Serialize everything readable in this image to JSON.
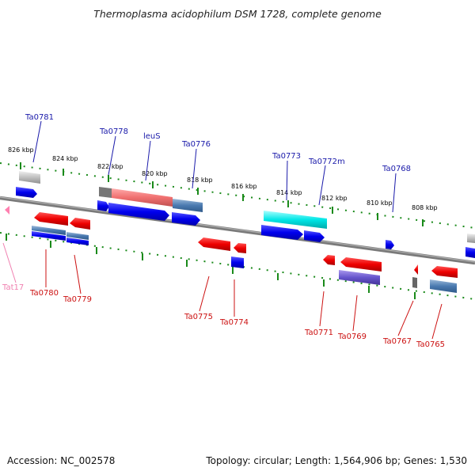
{
  "title": "Thermoplasma acidophilum DSM 1728, complete genome",
  "footer": {
    "accession": "Accession: NC_002578",
    "summary": "Topology: circular; Length: 1,564,906 bp; Genes: 1,530"
  },
  "colors": {
    "backbone": "#8a8a8a",
    "ticks": "#1a8a1a",
    "label_upper": "#1a1aaa",
    "label_lower": "#cc1111",
    "label_trna": "#f080b0"
  },
  "scale_labels": [
    "826 kbp",
    "824 kbp",
    "822 kbp",
    "820 kbp",
    "818 kbp",
    "816 kbp",
    "814 kbp",
    "812 kbp",
    "810 kbp",
    "808 kbp"
  ],
  "upper_labels": [
    "Ta0781",
    "Ta0778",
    "leuS",
    "Ta0776",
    "Ta0773",
    "Ta0772m",
    "Ta0768"
  ],
  "lower_labels": [
    "Tat17",
    "Ta0780",
    "Ta0779",
    "Ta0775",
    "Ta0774",
    "Ta0771",
    "Ta0769",
    "Ta0767",
    "Ta0765"
  ]
}
